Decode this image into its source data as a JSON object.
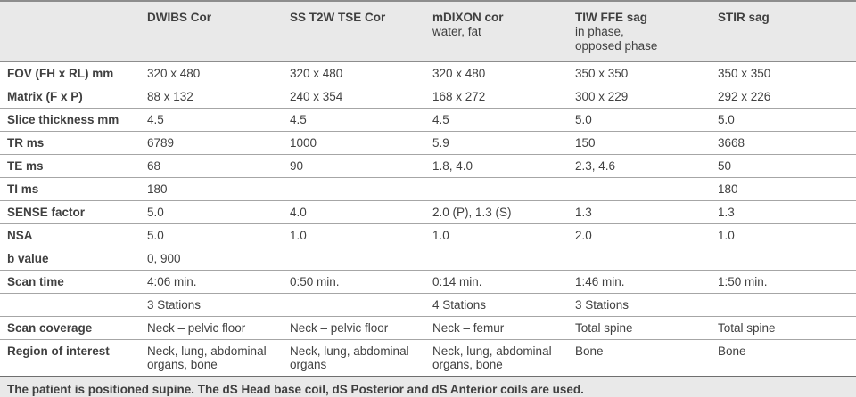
{
  "colors": {
    "header_bg": "#e9e9e9",
    "footer_bg": "#e9e9e9",
    "separator": "#a6a6a6",
    "strong_line": "#6f6f6f",
    "text": "#404040"
  },
  "table": {
    "columns": [
      {
        "title": "",
        "subtitle": ""
      },
      {
        "title": "DWIBS Cor",
        "subtitle": ""
      },
      {
        "title": "SS T2W TSE Cor",
        "subtitle": ""
      },
      {
        "title": "mDIXON cor",
        "subtitle": "water, fat"
      },
      {
        "title": "TIW FFE sag",
        "subtitle": "in phase,\nopposed phase"
      },
      {
        "title": "STIR sag",
        "subtitle": ""
      }
    ],
    "rows": [
      {
        "label": "FOV (FH x RL) mm",
        "values": [
          "320 x 480",
          "320 x 480",
          "320 x 480",
          "350 x 350",
          "350 x 350"
        ]
      },
      {
        "label": "Matrix (F x P)",
        "values": [
          "88 x 132",
          "240 x 354",
          "168 x 272",
          "300 x 229",
          "292 x 226"
        ]
      },
      {
        "label": "Slice thickness mm",
        "values": [
          "4.5",
          "4.5",
          "4.5",
          "5.0",
          "5.0"
        ]
      },
      {
        "label": "TR ms",
        "values": [
          "6789",
          "1000",
          "5.9",
          "150",
          "3668"
        ]
      },
      {
        "label": "TE ms",
        "values": [
          "68",
          "90",
          "1.8, 4.0",
          "2.3, 4.6",
          "50"
        ]
      },
      {
        "label": "TI ms",
        "values": [
          "180",
          "—",
          "—",
          "—",
          "180"
        ]
      },
      {
        "label": "SENSE factor",
        "values": [
          "5.0",
          "4.0",
          "2.0 (P), 1.3 (S)",
          "1.3",
          "1.3"
        ]
      },
      {
        "label": "NSA",
        "values": [
          "5.0",
          "1.0",
          "1.0",
          "2.0",
          "1.0"
        ]
      },
      {
        "label": "b value",
        "values": [
          "0, 900",
          "",
          "",
          "",
          ""
        ]
      },
      {
        "label": "Scan time",
        "values": [
          "4:06 min.",
          "0:50 min.",
          "0:14 min.",
          "1:46 min.",
          "1:50 min."
        ]
      },
      {
        "label": "",
        "values": [
          "3 Stations",
          "",
          "4 Stations",
          "3 Stations",
          ""
        ]
      },
      {
        "label": "Scan coverage",
        "values": [
          "Neck – pelvic floor",
          "Neck – pelvic floor",
          "Neck – femur",
          "Total spine",
          "Total spine"
        ]
      },
      {
        "label": "Region of interest",
        "values": [
          "Neck, lung, abdominal organs, bone",
          "Neck, lung, abdominal organs",
          "Neck, lung, abdominal organs, bone",
          "Bone",
          "Bone"
        ]
      }
    ],
    "footnote": "The patient is positioned supine. The dS Head base coil, dS Posterior and dS Anterior coils are used."
  }
}
